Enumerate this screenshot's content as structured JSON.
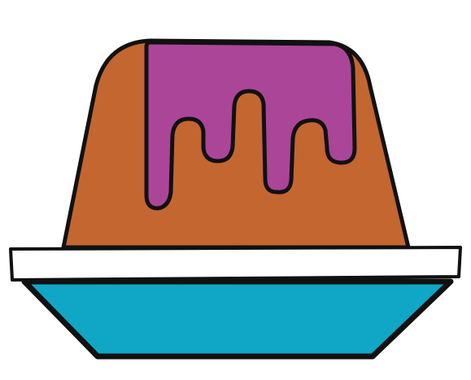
{
  "illustration": {
    "subject": "pudding-icon",
    "colors": {
      "background": "#ffffff",
      "outline": "#111111",
      "cake": "#c46630",
      "icing": "#ab4598",
      "plate_rim": "#ffffff",
      "plate_base": "#10a6c6"
    }
  }
}
